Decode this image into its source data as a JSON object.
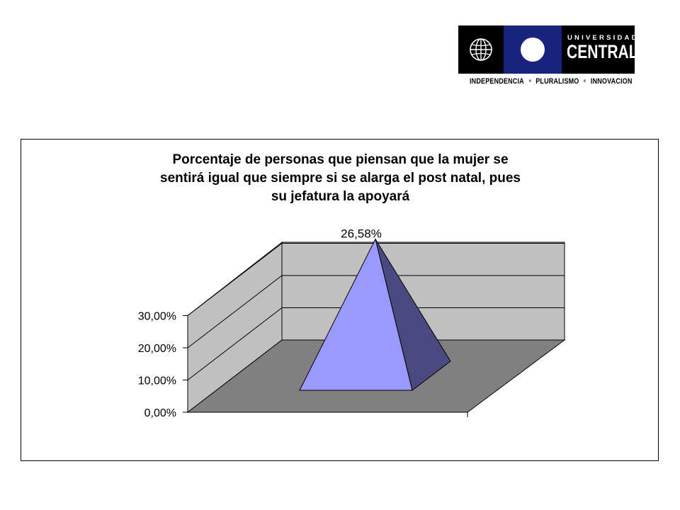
{
  "logo": {
    "university": "UNIVERSIDAD",
    "name": "CENTRAL",
    "motto": [
      "INDEPENDENCIA",
      "PLURALISMO",
      "INNOVACION"
    ]
  },
  "chart_data": {
    "type": "pyramid-3d",
    "title_lines": [
      "Porcentaje de personas que piensan que la mujer se",
      "sentirá igual que siempre si se alarga el post natal, pues",
      "su jefatura la apoyará"
    ],
    "categories": [
      ""
    ],
    "values": [
      26.58
    ],
    "data_labels": [
      "26,58%"
    ],
    "y_ticks": [
      "0,00%",
      "10,00%",
      "20,00%",
      "30,00%"
    ],
    "ylim": [
      0,
      30
    ],
    "grid": true,
    "colors": {
      "wall": "#c0c0c0",
      "floor": "#808080",
      "pyramid_front": "#9999ff",
      "pyramid_side": "#4a4a80"
    }
  }
}
